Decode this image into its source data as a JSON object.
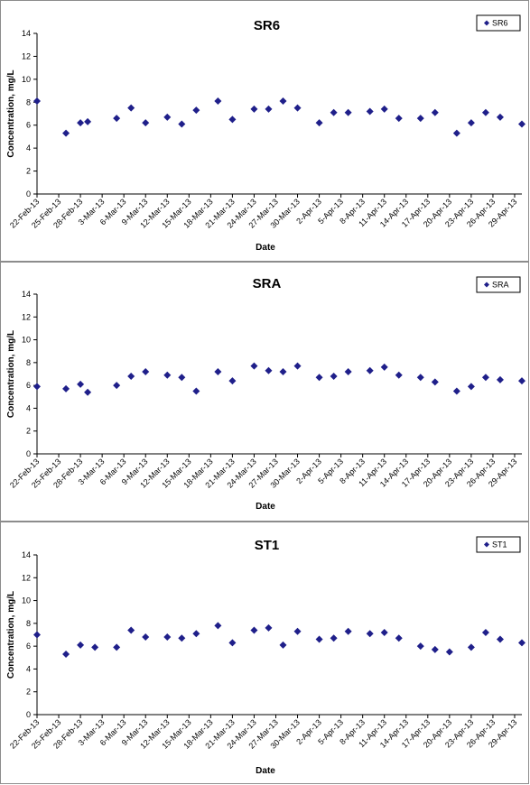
{
  "chart_data": [
    {
      "type": "scatter",
      "title": "SR6",
      "xlabel": "Date",
      "ylabel": "Concentration, mg/L",
      "ylim": [
        0,
        14
      ],
      "yticks": [
        0,
        2,
        4,
        6,
        8,
        10,
        12,
        14
      ],
      "xlim": [
        "22-Feb-13",
        "30-Apr-13"
      ],
      "xtick_labels": [
        "22-Feb-13",
        "25-Feb-13",
        "28-Feb-13",
        "3-Mar-13",
        "6-Mar-13",
        "9-Mar-13",
        "12-Mar-13",
        "15-Mar-13",
        "18-Mar-13",
        "21-Mar-13",
        "24-Mar-13",
        "27-Mar-13",
        "30-Mar-13",
        "2-Apr-13",
        "5-Apr-13",
        "8-Apr-13",
        "11-Apr-13",
        "14-Apr-13",
        "17-Apr-13",
        "20-Apr-13",
        "23-Apr-13",
        "26-Apr-13",
        "29-Apr-13"
      ],
      "legend_position": "top-right",
      "marker": "diamond",
      "color": "#1f1f8a",
      "series": [
        {
          "name": "SR6",
          "x": [
            "22-Feb-13",
            "26-Feb-13",
            "28-Feb-13",
            "1-Mar-13",
            "5-Mar-13",
            "7-Mar-13",
            "9-Mar-13",
            "12-Mar-13",
            "14-Mar-13",
            "16-Mar-13",
            "19-Mar-13",
            "21-Mar-13",
            "24-Mar-13",
            "26-Mar-13",
            "28-Mar-13",
            "30-Mar-13",
            "2-Apr-13",
            "4-Apr-13",
            "6-Apr-13",
            "9-Apr-13",
            "11-Apr-13",
            "13-Apr-13",
            "16-Apr-13",
            "18-Apr-13",
            "21-Apr-13",
            "23-Apr-13",
            "25-Apr-13",
            "27-Apr-13",
            "30-Apr-13"
          ],
          "y": [
            8.1,
            5.3,
            6.2,
            6.3,
            6.6,
            7.5,
            6.2,
            6.7,
            6.1,
            7.3,
            8.1,
            6.5,
            7.4,
            7.4,
            8.1,
            7.5,
            6.2,
            7.1,
            7.1,
            7.2,
            7.4,
            6.6,
            6.6,
            7.1,
            5.3,
            6.2,
            7.1,
            6.7,
            6.1
          ]
        }
      ]
    },
    {
      "type": "scatter",
      "title": "SRA",
      "xlabel": "Date",
      "ylabel": "Concentration, mg/L",
      "ylim": [
        0,
        14
      ],
      "yticks": [
        0,
        2,
        4,
        6,
        8,
        10,
        12,
        14
      ],
      "xlim": [
        "22-Feb-13",
        "30-Apr-13"
      ],
      "xtick_labels": [
        "22-Feb-13",
        "25-Feb-13",
        "28-Feb-13",
        "3-Mar-13",
        "6-Mar-13",
        "9-Mar-13",
        "12-Mar-13",
        "15-Mar-13",
        "18-Mar-13",
        "21-Mar-13",
        "24-Mar-13",
        "27-Mar-13",
        "30-Mar-13",
        "2-Apr-13",
        "5-Apr-13",
        "8-Apr-13",
        "11-Apr-13",
        "14-Apr-13",
        "17-Apr-13",
        "20-Apr-13",
        "23-Apr-13",
        "26-Apr-13",
        "29-Apr-13"
      ],
      "legend_position": "top-right",
      "marker": "diamond",
      "color": "#1f1f8a",
      "series": [
        {
          "name": "SRA",
          "x": [
            "22-Feb-13",
            "26-Feb-13",
            "28-Feb-13",
            "1-Mar-13",
            "5-Mar-13",
            "7-Mar-13",
            "9-Mar-13",
            "12-Mar-13",
            "14-Mar-13",
            "16-Mar-13",
            "19-Mar-13",
            "21-Mar-13",
            "24-Mar-13",
            "26-Mar-13",
            "28-Mar-13",
            "30-Mar-13",
            "2-Apr-13",
            "4-Apr-13",
            "6-Apr-13",
            "9-Apr-13",
            "11-Apr-13",
            "13-Apr-13",
            "16-Apr-13",
            "18-Apr-13",
            "21-Apr-13",
            "23-Apr-13",
            "25-Apr-13",
            "27-Apr-13",
            "30-Apr-13"
          ],
          "y": [
            5.9,
            5.7,
            6.1,
            5.4,
            6.0,
            6.8,
            7.2,
            6.9,
            6.7,
            5.5,
            7.2,
            6.4,
            7.7,
            7.3,
            7.2,
            7.7,
            6.7,
            6.8,
            7.2,
            7.3,
            7.6,
            6.9,
            6.7,
            6.3,
            5.5,
            5.9,
            6.7,
            6.5,
            6.4
          ]
        }
      ]
    },
    {
      "type": "scatter",
      "title": "ST1",
      "xlabel": "Date",
      "ylabel": "Concentration, mg/L",
      "ylim": [
        0,
        14
      ],
      "yticks": [
        0,
        2,
        4,
        6,
        8,
        10,
        12,
        14
      ],
      "xlim": [
        "22-Feb-13",
        "30-Apr-13"
      ],
      "xtick_labels": [
        "22-Feb-13",
        "25-Feb-13",
        "28-Feb-13",
        "3-Mar-13",
        "6-Mar-13",
        "9-Mar-13",
        "12-Mar-13",
        "15-Mar-13",
        "18-Mar-13",
        "21-Mar-13",
        "24-Mar-13",
        "27-Mar-13",
        "30-Mar-13",
        "2-Apr-13",
        "5-Apr-13",
        "8-Apr-13",
        "11-Apr-13",
        "14-Apr-13",
        "17-Apr-13",
        "20-Apr-13",
        "23-Apr-13",
        "26-Apr-13",
        "29-Apr-13"
      ],
      "legend_position": "top-right",
      "marker": "diamond",
      "color": "#1f1f8a",
      "series": [
        {
          "name": "ST1",
          "x": [
            "22-Feb-13",
            "26-Feb-13",
            "28-Feb-13",
            "2-Mar-13",
            "5-Mar-13",
            "7-Mar-13",
            "9-Mar-13",
            "12-Mar-13",
            "14-Mar-13",
            "16-Mar-13",
            "19-Mar-13",
            "21-Mar-13",
            "24-Mar-13",
            "26-Mar-13",
            "28-Mar-13",
            "30-Mar-13",
            "2-Apr-13",
            "4-Apr-13",
            "6-Apr-13",
            "9-Apr-13",
            "11-Apr-13",
            "13-Apr-13",
            "16-Apr-13",
            "18-Apr-13",
            "20-Apr-13",
            "23-Apr-13",
            "25-Apr-13",
            "27-Apr-13",
            "30-Apr-13"
          ],
          "y": [
            7.0,
            5.3,
            6.1,
            5.9,
            5.9,
            7.4,
            6.8,
            6.8,
            6.7,
            7.1,
            7.8,
            6.3,
            7.4,
            7.6,
            6.1,
            7.3,
            6.6,
            6.7,
            7.3,
            7.1,
            7.2,
            6.7,
            6.0,
            5.7,
            5.5,
            5.9,
            7.2,
            6.6,
            6.3
          ]
        }
      ]
    }
  ]
}
